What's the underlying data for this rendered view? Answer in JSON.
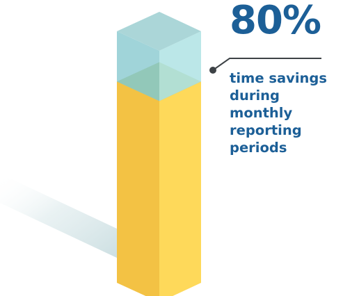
{
  "chart_data": {
    "type": "bar",
    "subtype": "3d-column-fill",
    "value_label": "80%",
    "value": 80,
    "max": 100,
    "caption_lines": [
      "time savings",
      "during",
      "monthly",
      "reporting",
      "periods"
    ],
    "colors": {
      "fill_front": "#f3c244",
      "fill_side": "#fed95a",
      "fill_top": "#9eab2c",
      "empty_front": "#8fcdd2",
      "empty_side": "#b4e4e6",
      "empty_top": "#a6d4d6",
      "shadow": "#d8e6e8",
      "text": "#1c5f97",
      "leader": "#3d4246"
    }
  }
}
